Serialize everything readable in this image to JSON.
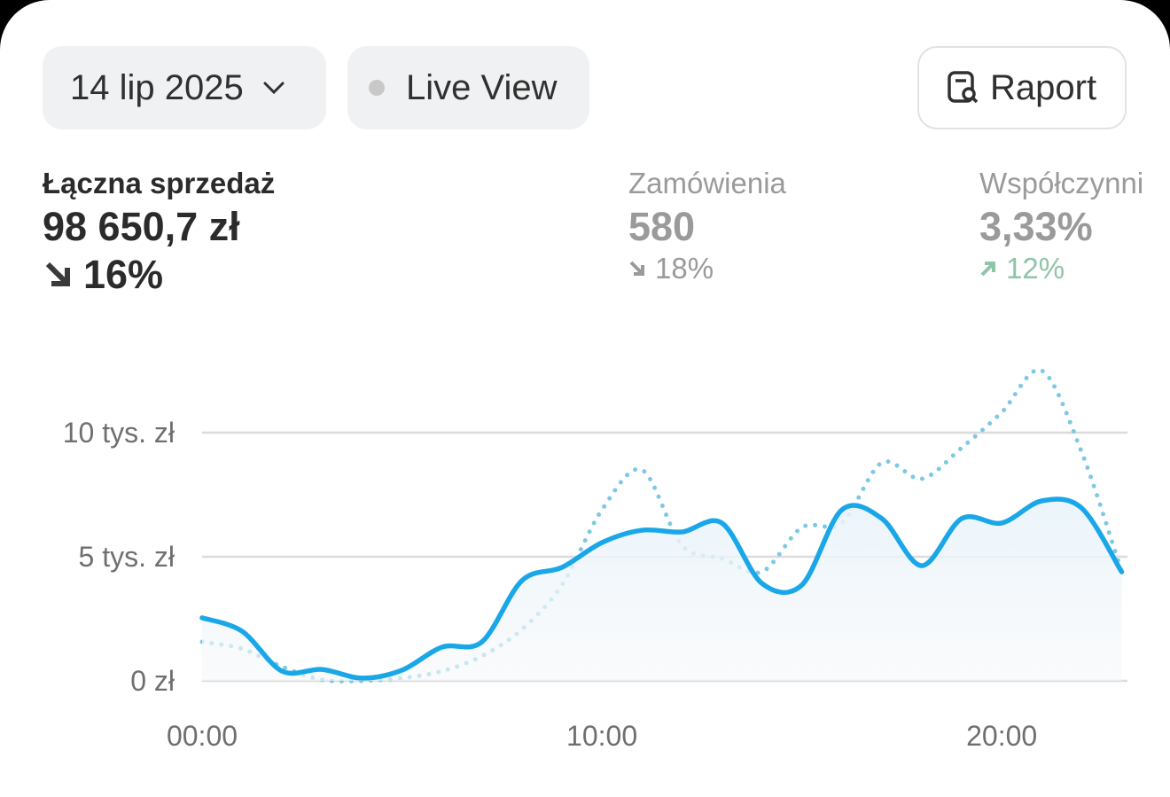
{
  "header": {
    "date": "14 lip 2025",
    "live": "Live View",
    "report": "Raport"
  },
  "metrics": [
    {
      "label": "Łączna sprzedaż",
      "value": "98 650,7 zł",
      "change": "16%"
    },
    {
      "label": "Zamówienia",
      "value": "580",
      "change": "18%"
    },
    {
      "label": "Współczynni",
      "value": "3,33%",
      "change": "12%"
    }
  ],
  "chart_data": {
    "type": "line",
    "x": [
      0,
      1,
      2,
      3,
      4,
      5,
      6,
      7,
      8,
      9,
      10,
      11,
      12,
      13,
      14,
      15,
      16,
      17,
      18,
      19,
      20,
      21,
      22,
      23
    ],
    "series": [
      {
        "color": "#1aa7e8",
        "style": "solid",
        "fill": true,
        "values": [
          2540,
          2000,
          390,
          460,
          110,
          430,
          1360,
          1570,
          4040,
          4570,
          5570,
          6070,
          6000,
          6360,
          3930,
          3860,
          6890,
          6540,
          4640,
          6540,
          6360,
          7250,
          6960,
          4390
        ]
      },
      {
        "color": "#7ec8e3",
        "style": "dotted",
        "fill": false,
        "values": [
          1570,
          1290,
          570,
          40,
          0,
          110,
          390,
          1000,
          2070,
          3860,
          6890,
          8500,
          5460,
          4930,
          4390,
          6180,
          6360,
          8790,
          8140,
          9390,
          10820,
          12500,
          9210,
          4390
        ]
      }
    ],
    "xlim": [
      0,
      23.1
    ],
    "ylim": [
      0,
      12500
    ],
    "xticks": [
      {
        "value": 0,
        "label": "00:00"
      },
      {
        "value": 10,
        "label": "10:00"
      },
      {
        "value": 20,
        "label": "20:00"
      }
    ],
    "yticks": [
      {
        "value": 0,
        "label": "0 zł"
      },
      {
        "value": 5000,
        "label": "5 tys. zł"
      },
      {
        "value": 10000,
        "label": "10 tys. zł"
      }
    ],
    "grid": true
  }
}
